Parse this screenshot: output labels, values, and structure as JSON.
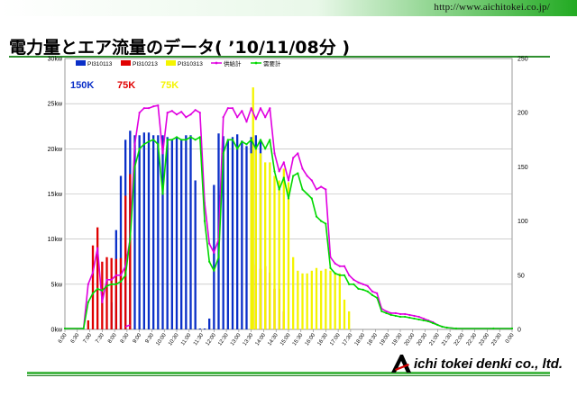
{
  "header": {
    "url": "http://www.aichitokei.co.jp/"
  },
  "page": {
    "title": "電力量とエア流量のデータ( ’10/11/08分 )"
  },
  "footer": {
    "company": "ichi tokei denki co., ltd.",
    "logo_letter": "A"
  },
  "colors": {
    "series_pi310113": "#0a2fc8",
    "series_pi310213": "#e00000",
    "series_pi310313": "#f4f400",
    "kyokyu": "#e000e0",
    "juyo": "#00d800",
    "capacity_150k": "#0a2fc8",
    "capacity_75k_red": "#e00000",
    "capacity_75k_yellow": "#f4f400",
    "accent_green": "#2f8f2f"
  },
  "chart_data": {
    "type": "bar",
    "grid": true,
    "legend": "top",
    "left_axis": {
      "ylim": [
        0,
        30
      ],
      "ticks": [
        "0kw",
        "5kw",
        "10kw",
        "15kw",
        "20kw",
        "25kw",
        "30kw"
      ]
    },
    "right_axis": {
      "ylim": [
        0,
        250
      ],
      "ticks": [
        "0",
        "50",
        "100",
        "150",
        "200",
        "250"
      ]
    },
    "x_ticks": [
      "6:00",
      "6:30",
      "7:00",
      "7:30",
      "8:00",
      "8:30",
      "9:00",
      "9:30",
      "10:00",
      "10:30",
      "11:00",
      "11:30",
      "12:00",
      "12:30",
      "13:00",
      "13:30",
      "14:00",
      "14:30",
      "15:00",
      "15:30",
      "16:00",
      "16:30",
      "17:00",
      "17:30",
      "18:00",
      "18:30",
      "19:00",
      "19:30",
      "20:00",
      "20:30",
      "21:00",
      "21:30",
      "22:00",
      "22:30",
      "23:00",
      "23:30",
      "0:00"
    ],
    "capacity_labels": [
      {
        "text": "150K",
        "color": "#0a2fc8"
      },
      {
        "text": "75K",
        "color": "#e00000"
      },
      {
        "text": "75K",
        "color": "#f4f400"
      }
    ],
    "bar_series": [
      {
        "name": "PI310113",
        "color": "#0a2fc8",
        "points": [
          [
            8.5,
            3
          ],
          [
            8.75,
            11
          ],
          [
            9,
            17
          ],
          [
            9.25,
            21
          ],
          [
            9.5,
            22
          ],
          [
            9.75,
            21.5
          ],
          [
            10,
            21.5
          ],
          [
            10.25,
            21.8
          ],
          [
            10.5,
            21.8
          ],
          [
            10.75,
            21.5
          ],
          [
            11,
            21.5
          ],
          [
            11.25,
            21.5
          ],
          [
            11.5,
            21.3
          ],
          [
            11.75,
            21
          ],
          [
            12,
            21.3
          ],
          [
            12.25,
            21
          ],
          [
            12.5,
            21.5
          ],
          [
            12.75,
            21.5
          ],
          [
            13,
            16.5
          ],
          [
            13.25,
            0.1
          ],
          [
            13.5,
            0.1
          ],
          [
            13.75,
            1.2
          ],
          [
            14,
            16
          ],
          [
            14.25,
            21.7
          ],
          [
            14.5,
            21.4
          ],
          [
            14.75,
            20.9
          ],
          [
            15,
            21.3
          ],
          [
            15.25,
            21.6
          ],
          [
            15.5,
            20.9
          ],
          [
            15.75,
            20.3
          ],
          [
            16,
            21.3
          ],
          [
            16.25,
            21.5
          ],
          [
            16.5,
            21
          ]
        ]
      },
      {
        "name": "PI310213",
        "color": "#e00000",
        "points": [
          [
            7.25,
            1
          ],
          [
            7.5,
            9.3
          ],
          [
            7.75,
            11.3
          ],
          [
            8,
            7.5
          ],
          [
            8.25,
            8
          ],
          [
            8.5,
            7.9
          ],
          [
            8.75,
            7.8
          ],
          [
            9,
            7.9
          ],
          [
            9.25,
            14.8
          ],
          [
            9.5,
            17.2
          ],
          [
            16.25,
            7.2
          ],
          [
            16.5,
            6.7
          ],
          [
            16.75,
            7
          ],
          [
            17,
            6.3
          ],
          [
            17.25,
            4.5
          ],
          [
            17.5,
            4.5
          ],
          [
            17.75,
            2
          ]
        ]
      },
      {
        "name": "PI310313",
        "color": "#f4f400",
        "points": [
          [
            16,
            19.5
          ],
          [
            16.25,
            20
          ],
          [
            16.5,
            19.5
          ],
          [
            16.75,
            18.5
          ],
          [
            17,
            18.5
          ],
          [
            17.25,
            17
          ],
          [
            17.5,
            16.5
          ],
          [
            17.75,
            17.8
          ],
          [
            18,
            16.3
          ],
          [
            18.25,
            8
          ],
          [
            18.5,
            6.5
          ],
          [
            18.75,
            6.2
          ],
          [
            19,
            6.2
          ],
          [
            19.25,
            6.5
          ],
          [
            19.5,
            6.8
          ],
          [
            19.75,
            6.5
          ],
          [
            20,
            6.7
          ],
          [
            20.25,
            6.5
          ],
          [
            20.5,
            6.3
          ],
          [
            20.75,
            6.2
          ],
          [
            21,
            3.3
          ],
          [
            21.25,
            2
          ]
        ]
      }
    ],
    "line_series": [
      {
        "name": "供給計",
        "color": "#e000e0",
        "points": [
          [
            6,
            0.1
          ],
          [
            7,
            0.1
          ],
          [
            7.25,
            5
          ],
          [
            7.5,
            6.3
          ],
          [
            7.75,
            9
          ],
          [
            8,
            3
          ],
          [
            8.25,
            5.5
          ],
          [
            8.5,
            5.5
          ],
          [
            8.75,
            6
          ],
          [
            9,
            6
          ],
          [
            9.25,
            7
          ],
          [
            9.5,
            10
          ],
          [
            9.75,
            20.5
          ],
          [
            10,
            24
          ],
          [
            10.25,
            24.5
          ],
          [
            10.5,
            24.5
          ],
          [
            10.75,
            24.7
          ],
          [
            11,
            24.8
          ],
          [
            11.25,
            19.5
          ],
          [
            11.5,
            24
          ],
          [
            11.75,
            24.2
          ],
          [
            12,
            23.8
          ],
          [
            12.25,
            24.1
          ],
          [
            12.5,
            23.5
          ],
          [
            12.75,
            23.8
          ],
          [
            13,
            24.3
          ],
          [
            13.25,
            24
          ],
          [
            13.5,
            14
          ],
          [
            13.75,
            9.5
          ],
          [
            14,
            8.5
          ],
          [
            14.25,
            10
          ],
          [
            14.5,
            23.5
          ],
          [
            14.75,
            24.5
          ],
          [
            15,
            24.5
          ],
          [
            15.25,
            23.5
          ],
          [
            15.5,
            24.2
          ],
          [
            15.75,
            23
          ],
          [
            16,
            24.5
          ],
          [
            16.25,
            23.3
          ],
          [
            16.5,
            24.5
          ],
          [
            16.75,
            23.5
          ],
          [
            17,
            24.5
          ],
          [
            17.25,
            19.5
          ],
          [
            17.5,
            17.5
          ],
          [
            17.75,
            18.5
          ],
          [
            18,
            16.5
          ],
          [
            18.25,
            19
          ],
          [
            18.5,
            19.5
          ],
          [
            18.75,
            17.8
          ],
          [
            19,
            17
          ],
          [
            19.25,
            16.5
          ],
          [
            19.5,
            15.5
          ],
          [
            19.75,
            15.8
          ],
          [
            20,
            15.5
          ],
          [
            20.25,
            8
          ],
          [
            20.5,
            7.3
          ],
          [
            20.75,
            7
          ],
          [
            21,
            7
          ],
          [
            21.25,
            6
          ],
          [
            21.5,
            5.5
          ],
          [
            21.75,
            5.2
          ],
          [
            22,
            5
          ],
          [
            22.25,
            4.8
          ],
          [
            22.5,
            4.2
          ],
          [
            22.75,
            4
          ],
          [
            23,
            2.3
          ],
          [
            23.25,
            2
          ],
          [
            23.5,
            1.8
          ],
          [
            23.75,
            1.8
          ],
          [
            24,
            1.7
          ],
          [
            24.25,
            1.7
          ],
          [
            24.5,
            1.6
          ],
          [
            24.75,
            1.5
          ],
          [
            25,
            1.4
          ],
          [
            25.25,
            1.2
          ],
          [
            25.5,
            1
          ],
          [
            25.75,
            0.8
          ],
          [
            26,
            0.5
          ],
          [
            26.25,
            0.3
          ],
          [
            26.5,
            0.2
          ],
          [
            27,
            0.1
          ],
          [
            29,
            0.1
          ],
          [
            30,
            0.1
          ]
        ]
      },
      {
        "name": "需要計",
        "color": "#00d800",
        "points": [
          [
            6,
            0.1
          ],
          [
            7,
            0.1
          ],
          [
            7.25,
            3
          ],
          [
            7.5,
            4
          ],
          [
            7.75,
            4.5
          ],
          [
            8,
            4.3
          ],
          [
            8.25,
            4.8
          ],
          [
            8.5,
            5
          ],
          [
            8.75,
            5
          ],
          [
            9,
            5.3
          ],
          [
            9.25,
            6
          ],
          [
            9.5,
            10
          ],
          [
            9.75,
            18
          ],
          [
            10,
            20
          ],
          [
            10.25,
            20.5
          ],
          [
            10.5,
            20.8
          ],
          [
            10.75,
            21
          ],
          [
            11,
            20.5
          ],
          [
            11.25,
            15
          ],
          [
            11.5,
            21
          ],
          [
            11.75,
            21
          ],
          [
            12,
            21.3
          ],
          [
            12.25,
            21
          ],
          [
            12.5,
            21
          ],
          [
            12.75,
            21.3
          ],
          [
            13,
            21
          ],
          [
            13.25,
            21.3
          ],
          [
            13.5,
            12
          ],
          [
            13.75,
            7.5
          ],
          [
            14,
            6.5
          ],
          [
            14.25,
            8
          ],
          [
            14.5,
            19.5
          ],
          [
            14.75,
            21
          ],
          [
            15,
            21
          ],
          [
            15.25,
            20
          ],
          [
            15.5,
            20.8
          ],
          [
            15.75,
            20.5
          ],
          [
            16,
            21
          ],
          [
            16.25,
            20
          ],
          [
            16.5,
            21
          ],
          [
            16.75,
            20
          ],
          [
            17,
            21
          ],
          [
            17.25,
            17.5
          ],
          [
            17.5,
            15.5
          ],
          [
            17.75,
            16.8
          ],
          [
            18,
            14.5
          ],
          [
            18.25,
            17
          ],
          [
            18.5,
            17.3
          ],
          [
            18.75,
            15.5
          ],
          [
            19,
            15
          ],
          [
            19.25,
            14.5
          ],
          [
            19.5,
            12.5
          ],
          [
            19.75,
            12
          ],
          [
            20,
            11.7
          ],
          [
            20.25,
            6.8
          ],
          [
            20.5,
            6.2
          ],
          [
            20.75,
            6
          ],
          [
            21,
            6
          ],
          [
            21.25,
            5
          ],
          [
            21.5,
            5
          ],
          [
            21.75,
            4.5
          ],
          [
            22,
            4.4
          ],
          [
            22.25,
            4.2
          ],
          [
            22.5,
            3.8
          ],
          [
            22.75,
            3.5
          ],
          [
            23,
            2
          ],
          [
            23.25,
            1.8
          ],
          [
            23.5,
            1.6
          ],
          [
            23.75,
            1.5
          ],
          [
            24,
            1.4
          ],
          [
            24.25,
            1.4
          ],
          [
            24.5,
            1.3
          ],
          [
            24.75,
            1.2
          ],
          [
            25,
            1.1
          ],
          [
            25.25,
            1
          ],
          [
            25.5,
            0.9
          ],
          [
            25.75,
            0.7
          ],
          [
            26,
            0.5
          ],
          [
            26.25,
            0.3
          ],
          [
            26.5,
            0.2
          ],
          [
            27,
            0.1
          ],
          [
            29,
            0.1
          ],
          [
            30,
            0.1
          ]
        ]
      },
      {
        "name": "",
        "color": "#e000e0",
        "points": [
          [
            9.25,
            0.3
          ],
          [
            9.5,
            0.5
          ]
        ]
      }
    ],
    "yellow_peak": {
      "x": 16.1,
      "value": 26.8
    }
  }
}
